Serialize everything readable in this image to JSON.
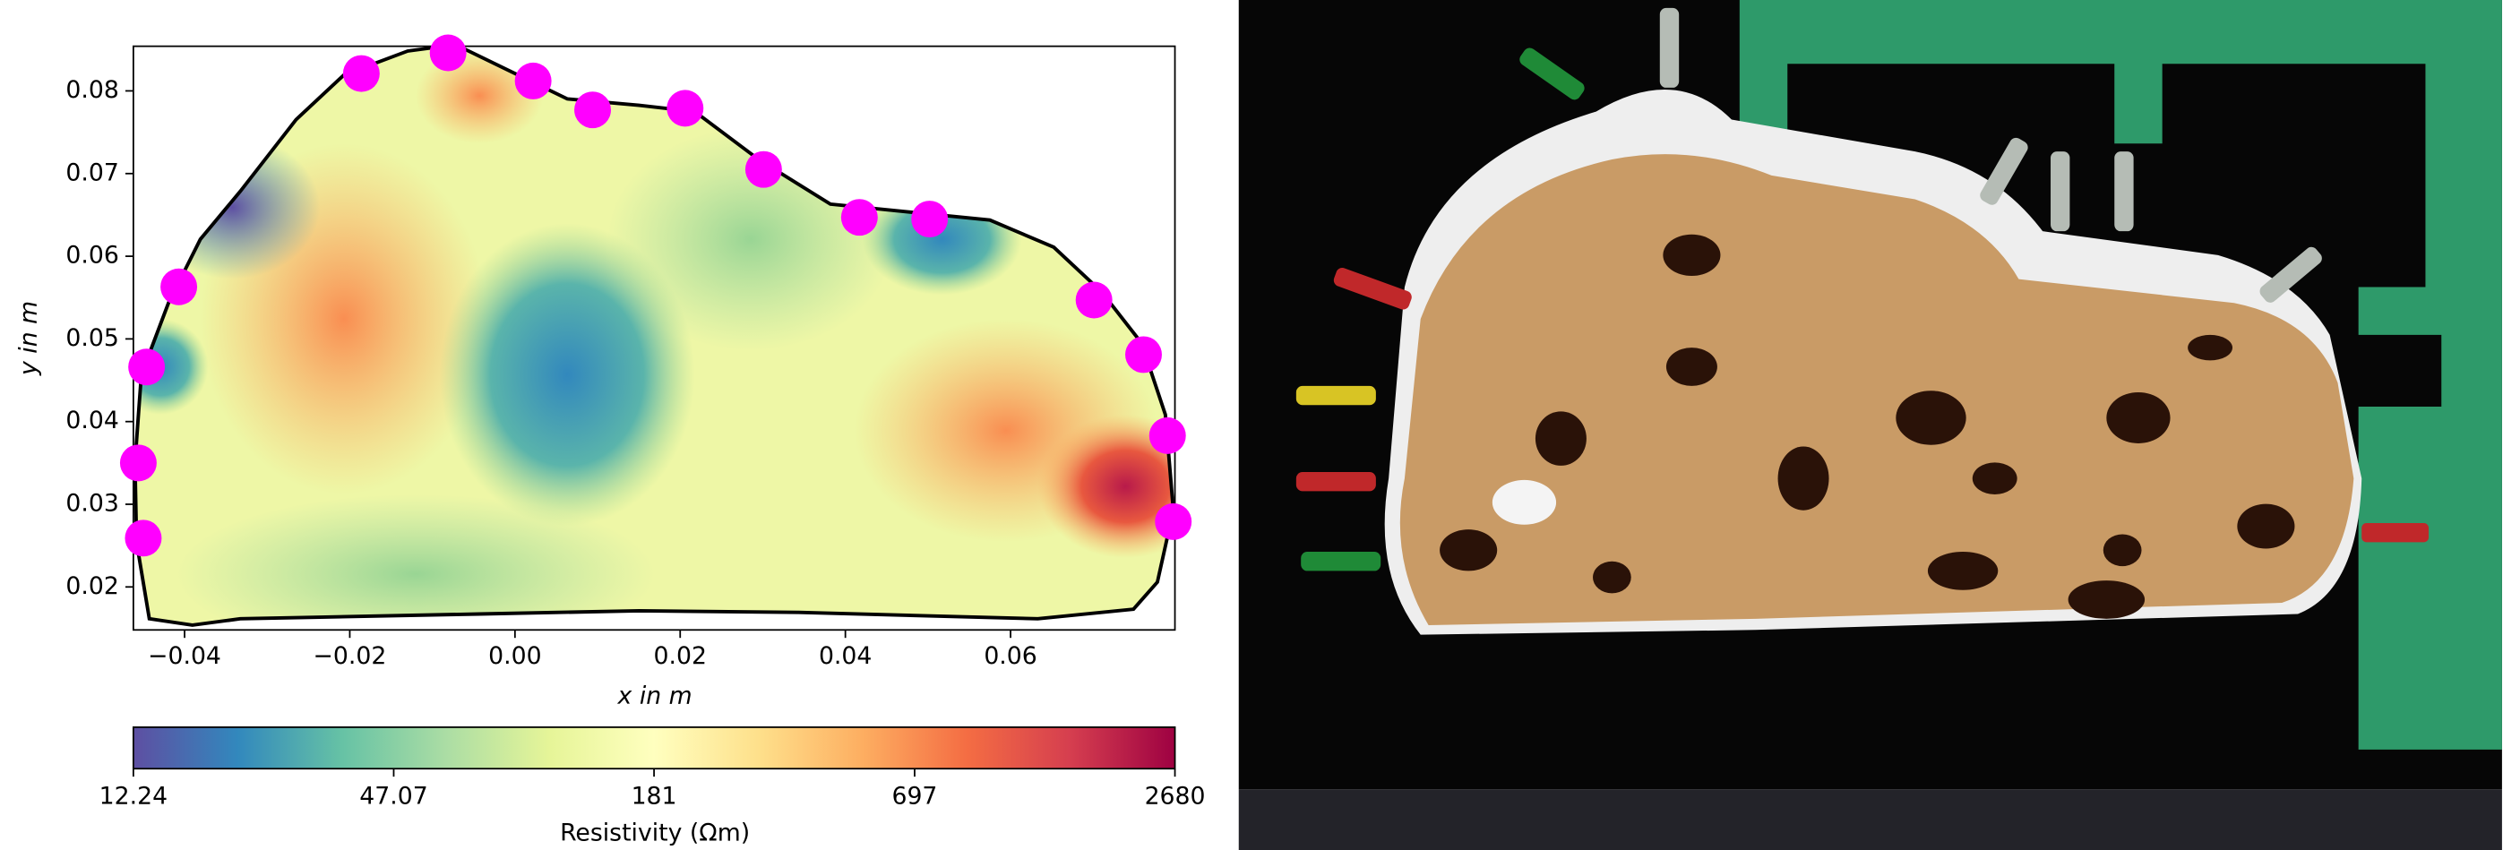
{
  "chart_data": {
    "type": "scatter",
    "xlabel": "x in m",
    "ylabel": "y in m",
    "xlim": [
      -0.0462,
      0.0799
    ],
    "ylim": [
      0.0148,
      0.0854
    ],
    "xticks": [
      {
        "value": -0.04,
        "label": "−0.04"
      },
      {
        "value": -0.02,
        "label": "−0.02"
      },
      {
        "value": 0,
        "label": "0.00"
      },
      0.02,
      0.04,
      0.06
    ],
    "yticks": [
      0.02,
      0.03,
      0.04,
      0.05,
      0.06,
      0.07,
      0.08
    ],
    "color": "#ff00ff",
    "x": [
      -0.045,
      -0.0456,
      -0.0446,
      -0.0407,
      -0.0186,
      -0.0081,
      0.0022,
      0.0094,
      0.0206,
      0.0301,
      0.0417,
      0.0502,
      0.0701,
      0.0761,
      0.079,
      0.0797
    ],
    "values": [
      0.0259,
      0.035,
      0.0466,
      0.0563,
      0.0821,
      0.0846,
      0.0812,
      0.0777,
      0.0779,
      0.0705,
      0.0647,
      0.0645,
      0.0547,
      0.0481,
      0.0383,
      0.0279
    ],
    "colorbar": {
      "label": "Resistivity (Ωm)",
      "scale": "log",
      "clim": [
        12.24,
        2680
      ],
      "ticks": [
        12.24,
        47.07,
        181,
        697,
        2680
      ],
      "colors": [
        "#5e4fa2",
        "#3288bd",
        "#66c2a5",
        "#abdda4",
        "#e6f598",
        "#ffffbf",
        "#fee08b",
        "#fdae61",
        "#f46d43",
        "#d53e4f",
        "#9e0142"
      ]
    }
  }
}
